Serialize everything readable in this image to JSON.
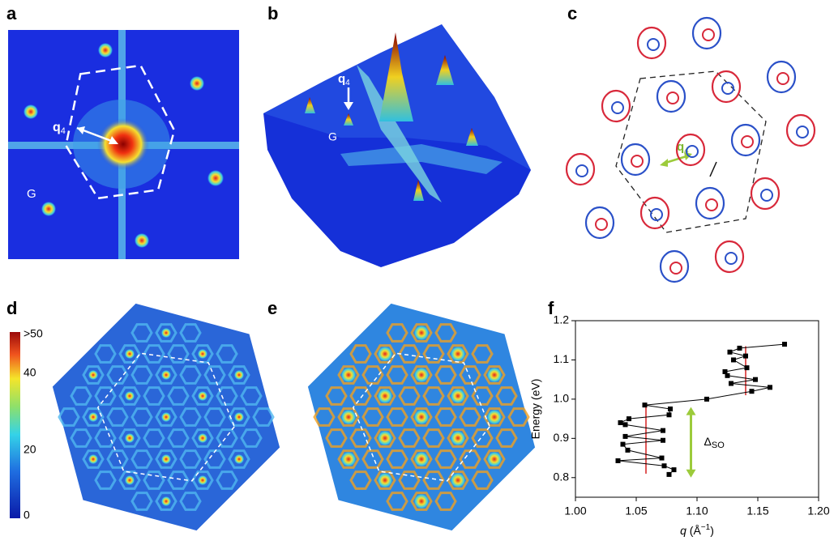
{
  "panels": {
    "a": {
      "letter": "a",
      "q_label": {
        "base": "q",
        "sub": "4"
      },
      "point_label": "G"
    },
    "b": {
      "letter": "b",
      "q_label": {
        "base": "q",
        "sub": "4"
      },
      "point_label": "G"
    },
    "c": {
      "letter": "c",
      "q_label": {
        "base": "q",
        "sub": "4"
      }
    },
    "d": {
      "letter": "d",
      "colorbar": [
        ">50",
        "40",
        "20",
        "0"
      ]
    },
    "e": {
      "letter": "e"
    },
    "f": {
      "letter": "f"
    }
  },
  "chart_data": {
    "type": "line",
    "x": [
      1.077,
      1.081,
      1.073,
      1.035,
      1.071,
      1.043,
      1.039,
      1.072,
      1.041,
      1.072,
      1.041,
      1.037,
      1.044,
      1.077,
      1.078,
      1.057,
      1.108,
      1.145,
      1.16,
      1.128,
      1.148,
      1.125,
      1.123,
      1.141,
      1.13,
      1.14,
      1.127,
      1.135,
      1.172
    ],
    "values": [
      0.808,
      0.82,
      0.83,
      0.843,
      0.85,
      0.87,
      0.885,
      0.895,
      0.905,
      0.92,
      0.935,
      0.94,
      0.95,
      0.96,
      0.975,
      0.985,
      1.0,
      1.02,
      1.03,
      1.04,
      1.05,
      1.06,
      1.07,
      1.08,
      1.1,
      1.11,
      1.12,
      1.13,
      1.14
    ],
    "color": "#000000",
    "xlim": [
      1.0,
      1.2
    ],
    "xticks": [
      {
        "value": 1.0,
        "label": "1.00"
      },
      {
        "value": 1.05,
        "label": "1.05"
      },
      {
        "value": 1.1,
        "label": "1.10"
      },
      {
        "value": 1.15,
        "label": "1.15"
      },
      {
        "value": 1.2,
        "label": "1.20"
      }
    ],
    "ylim": [
      0.75,
      1.2
    ],
    "yticks": [
      0.8,
      0.9,
      {
        "value": 1.0,
        "label": "1.0"
      },
      1.1,
      1.2
    ],
    "y_label": "Energy (eV)",
    "x_label": {
      "var": "q",
      "unit_open": " (Å",
      "exp": "−1",
      "unit_close": ")"
    },
    "vlines": [
      {
        "x": 1.058,
        "y": [
          0.81,
          0.98
        ],
        "color": "#d62020"
      },
      {
        "x": 1.14,
        "y": [
          1.01,
          1.135
        ],
        "color": "#d62020"
      }
    ],
    "arrow": {
      "x": 1.095,
      "y": [
        0.8,
        0.98
      ],
      "color": "#9ccb3b",
      "label": {
        "base": "Δ",
        "sub": "SO"
      }
    }
  }
}
